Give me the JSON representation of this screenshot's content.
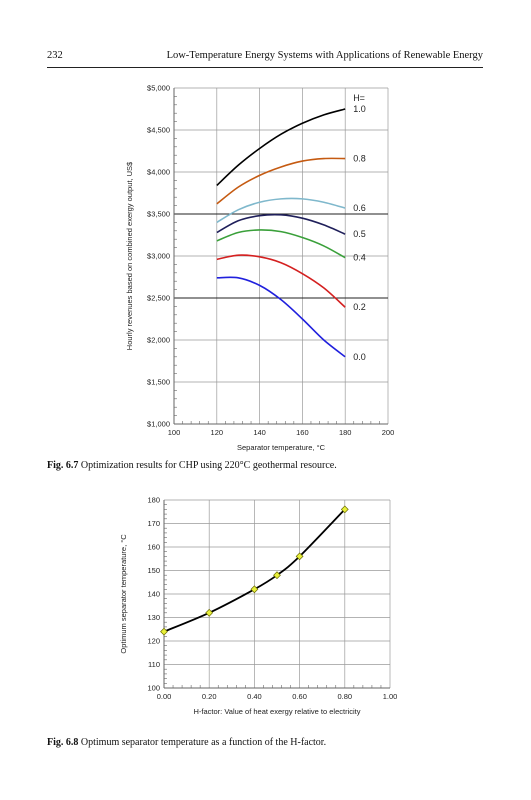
{
  "header": {
    "page_number": "232",
    "running_title": "Low-Temperature Energy Systems with Applications of Renewable Energy"
  },
  "figures": [
    {
      "caption_label": "Fig. 6.7",
      "caption_text": "Optimization results for CHP using 220°C geothermal resource."
    },
    {
      "caption_label": "Fig. 6.8",
      "caption_text": "Optimum separator temperature as a function of the H-factor."
    }
  ],
  "chart_data": [
    {
      "type": "line",
      "title": "",
      "xlabel": "Separator temperature, °C",
      "ylabel": "Hourly revenues based on combined exergy output, US$",
      "xlim": [
        100,
        200
      ],
      "ylim": [
        1000,
        5000
      ],
      "x_ticks": [
        "100",
        "120",
        "140",
        "160",
        "180",
        "200"
      ],
      "y_ticks": [
        "$1,000",
        "$1,500",
        "$2,000",
        "$2,500",
        "$3,000",
        "$3,500",
        "$4,000",
        "$4,500",
        "$5,000"
      ],
      "grid": true,
      "legend_header": "H=",
      "series": [
        {
          "name": "1.0",
          "color": "#000000",
          "x": [
            120,
            130,
            140,
            150,
            160,
            170,
            180
          ],
          "y": [
            3840,
            4080,
            4280,
            4450,
            4580,
            4680,
            4750
          ]
        },
        {
          "name": "0.8",
          "color": "#c55a11",
          "x": [
            120,
            130,
            140,
            150,
            160,
            170,
            180
          ],
          "y": [
            3620,
            3820,
            3960,
            4060,
            4130,
            4160,
            4160
          ]
        },
        {
          "name": "0.6",
          "color": "#7fb8cc",
          "x": [
            120,
            130,
            140,
            150,
            160,
            170,
            180
          ],
          "y": [
            3400,
            3550,
            3640,
            3680,
            3680,
            3640,
            3570
          ]
        },
        {
          "name": "0.5",
          "color": "#1f1f5a",
          "x": [
            120,
            130,
            140,
            150,
            160,
            170,
            180
          ],
          "y": [
            3280,
            3420,
            3480,
            3490,
            3450,
            3370,
            3260
          ]
        },
        {
          "name": "0.4",
          "color": "#3aa03a",
          "x": [
            120,
            130,
            140,
            150,
            160,
            170,
            180
          ],
          "y": [
            3180,
            3280,
            3310,
            3290,
            3220,
            3120,
            2980
          ]
        },
        {
          "name": "0.2",
          "color": "#d42020",
          "x": [
            120,
            130,
            140,
            150,
            160,
            170,
            180
          ],
          "y": [
            2960,
            3010,
            2990,
            2920,
            2790,
            2620,
            2390
          ]
        },
        {
          "name": "0.0",
          "color": "#2020dd",
          "x": [
            120,
            130,
            140,
            150,
            160,
            170,
            180
          ],
          "y": [
            2740,
            2740,
            2650,
            2480,
            2250,
            2000,
            1800
          ]
        }
      ]
    },
    {
      "type": "line",
      "title": "",
      "xlabel": "H-factor: Value of heat exergy relative to electricity",
      "ylabel": "Optimum separator temperature, °C",
      "xlim": [
        0.0,
        1.0
      ],
      "ylim": [
        100,
        180
      ],
      "x_ticks": [
        "0.00",
        "0.20",
        "0.40",
        "0.60",
        "0.80",
        "1.00"
      ],
      "y_ticks": [
        "100",
        "110",
        "120",
        "130",
        "140",
        "150",
        "160",
        "170",
        "180"
      ],
      "grid": true,
      "series": [
        {
          "x": [
            0.0,
            0.2,
            0.4,
            0.5,
            0.6,
            0.8
          ],
          "y": [
            124,
            132,
            142,
            148,
            156,
            176
          ],
          "color": "#000000",
          "marker_color": "#e8f03a"
        }
      ]
    }
  ]
}
